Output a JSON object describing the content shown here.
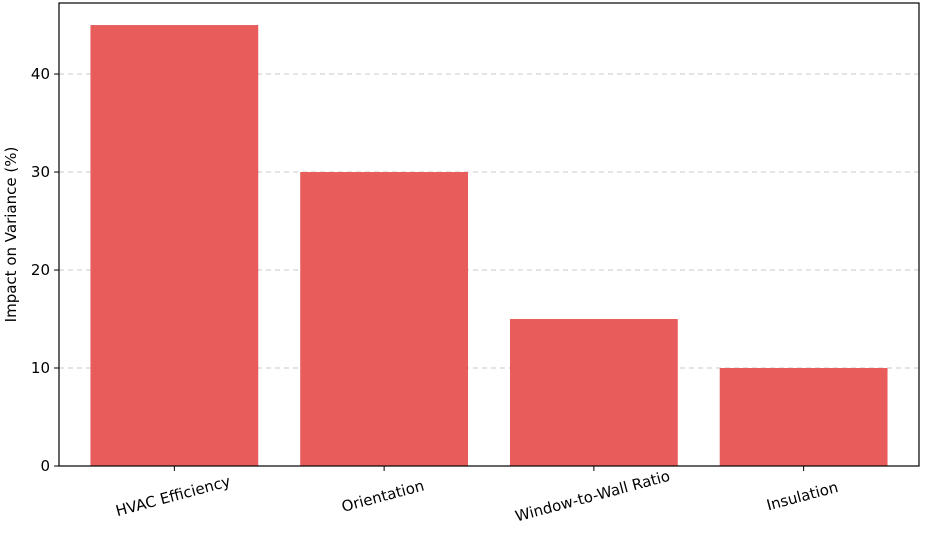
{
  "chart_data": {
    "type": "bar",
    "title": "",
    "xlabel": "",
    "ylabel": "Impact on Variance (%)",
    "categories": [
      "HVAC Efficiency",
      "Orientation",
      "Window-to-Wall Ratio",
      "Insulation"
    ],
    "values": [
      45,
      30,
      15,
      10
    ],
    "ylim": [
      0,
      47.25
    ],
    "yticks": [
      0,
      10,
      20,
      30,
      40
    ],
    "grid": "y-dashed",
    "bar_color": "#e95c5c",
    "xtick_rotation": -15
  }
}
